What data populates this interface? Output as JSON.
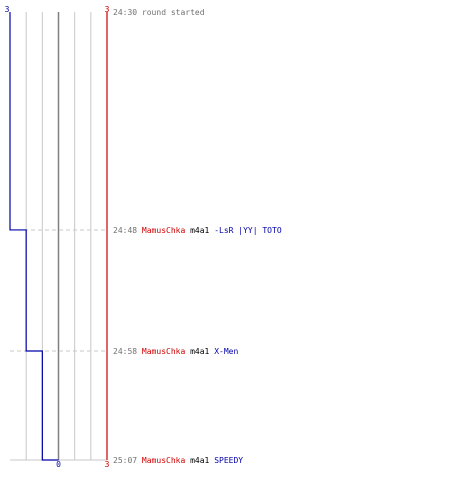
{
  "chart_data": {
    "type": "line",
    "title": "",
    "team_colors": {
      "blue": "#0000aa",
      "red": "#cc0000"
    },
    "colors": {
      "grid": "#c8c8c8",
      "center_line": "#808080",
      "guide": "#c8c8c8",
      "time": "#707070",
      "weapon": "#000000",
      "note": "#707070"
    },
    "score_axis": {
      "max": 3,
      "top_left_label": "3",
      "top_right_label": "3",
      "bottom_right_label": "3",
      "bottom_center_label": "0"
    },
    "time_range": {
      "start": "24:30",
      "end": "25:07"
    },
    "series": [
      {
        "team": "blue",
        "points": [
          {
            "t": "24:30",
            "y": 3
          },
          {
            "t": "24:48",
            "y": 2
          },
          {
            "t": "24:58",
            "y": 1
          },
          {
            "t": "25:07",
            "y": 0
          }
        ]
      },
      {
        "team": "red",
        "points": [
          {
            "t": "24:30",
            "y": 3
          },
          {
            "t": "25:07",
            "y": 3
          }
        ]
      }
    ],
    "events": [
      {
        "time": "24:30",
        "note": "round started",
        "guide": false
      },
      {
        "time": "24:48",
        "killer": "MamusChka",
        "killer_team": "red",
        "weapon": "m4a1",
        "victim": "-LsR |YY| TOTO",
        "victim_team": "blue",
        "guide": true
      },
      {
        "time": "24:58",
        "killer": "MamusChka",
        "killer_team": "red",
        "weapon": "m4a1",
        "victim": "X-Men",
        "victim_team": "blue",
        "guide": true
      },
      {
        "time": "25:07",
        "killer": "MamusChka",
        "killer_team": "red",
        "weapon": "m4a1",
        "victim": "SPEEDY",
        "victim_team": "blue",
        "guide": false
      }
    ]
  }
}
